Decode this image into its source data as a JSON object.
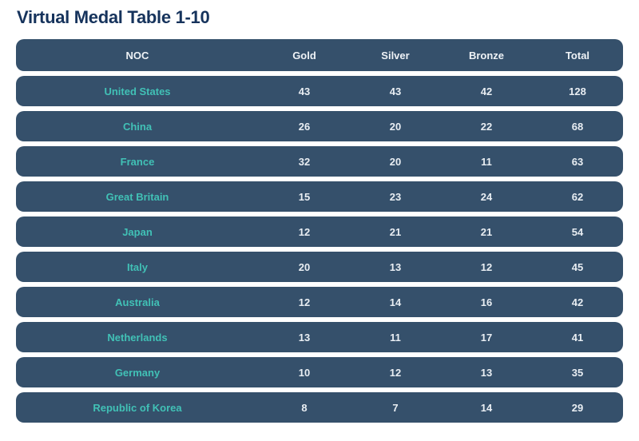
{
  "page": {
    "title": "Virtual Medal Table 1-10"
  },
  "table": {
    "columns": [
      "NOC",
      "Gold",
      "Silver",
      "Bronze",
      "Total"
    ],
    "rows": [
      {
        "noc": "United States",
        "gold": "43",
        "silver": "43",
        "bronze": "42",
        "total": "128"
      },
      {
        "noc": "China",
        "gold": "26",
        "silver": "20",
        "bronze": "22",
        "total": "68"
      },
      {
        "noc": "France",
        "gold": "32",
        "silver": "20",
        "bronze": "11",
        "total": "63"
      },
      {
        "noc": "Great Britain",
        "gold": "15",
        "silver": "23",
        "bronze": "24",
        "total": "62"
      },
      {
        "noc": "Japan",
        "gold": "12",
        "silver": "21",
        "bronze": "21",
        "total": "54"
      },
      {
        "noc": "Italy",
        "gold": "20",
        "silver": "13",
        "bronze": "12",
        "total": "45"
      },
      {
        "noc": "Australia",
        "gold": "12",
        "silver": "14",
        "bronze": "16",
        "total": "42"
      },
      {
        "noc": "Netherlands",
        "gold": "13",
        "silver": "11",
        "bronze": "17",
        "total": "41"
      },
      {
        "noc": "Germany",
        "gold": "10",
        "silver": "12",
        "bronze": "13",
        "total": "35"
      },
      {
        "noc": "Republic of Korea",
        "gold": "8",
        "silver": "7",
        "bronze": "14",
        "total": "29"
      }
    ]
  },
  "colors": {
    "row_background": "#35506b",
    "noc_link_text": "#41c1b6",
    "header_text": "#eef2f6",
    "value_text": "#e9eef3",
    "title_text": "#16335c",
    "page_background": "#ffffff"
  }
}
